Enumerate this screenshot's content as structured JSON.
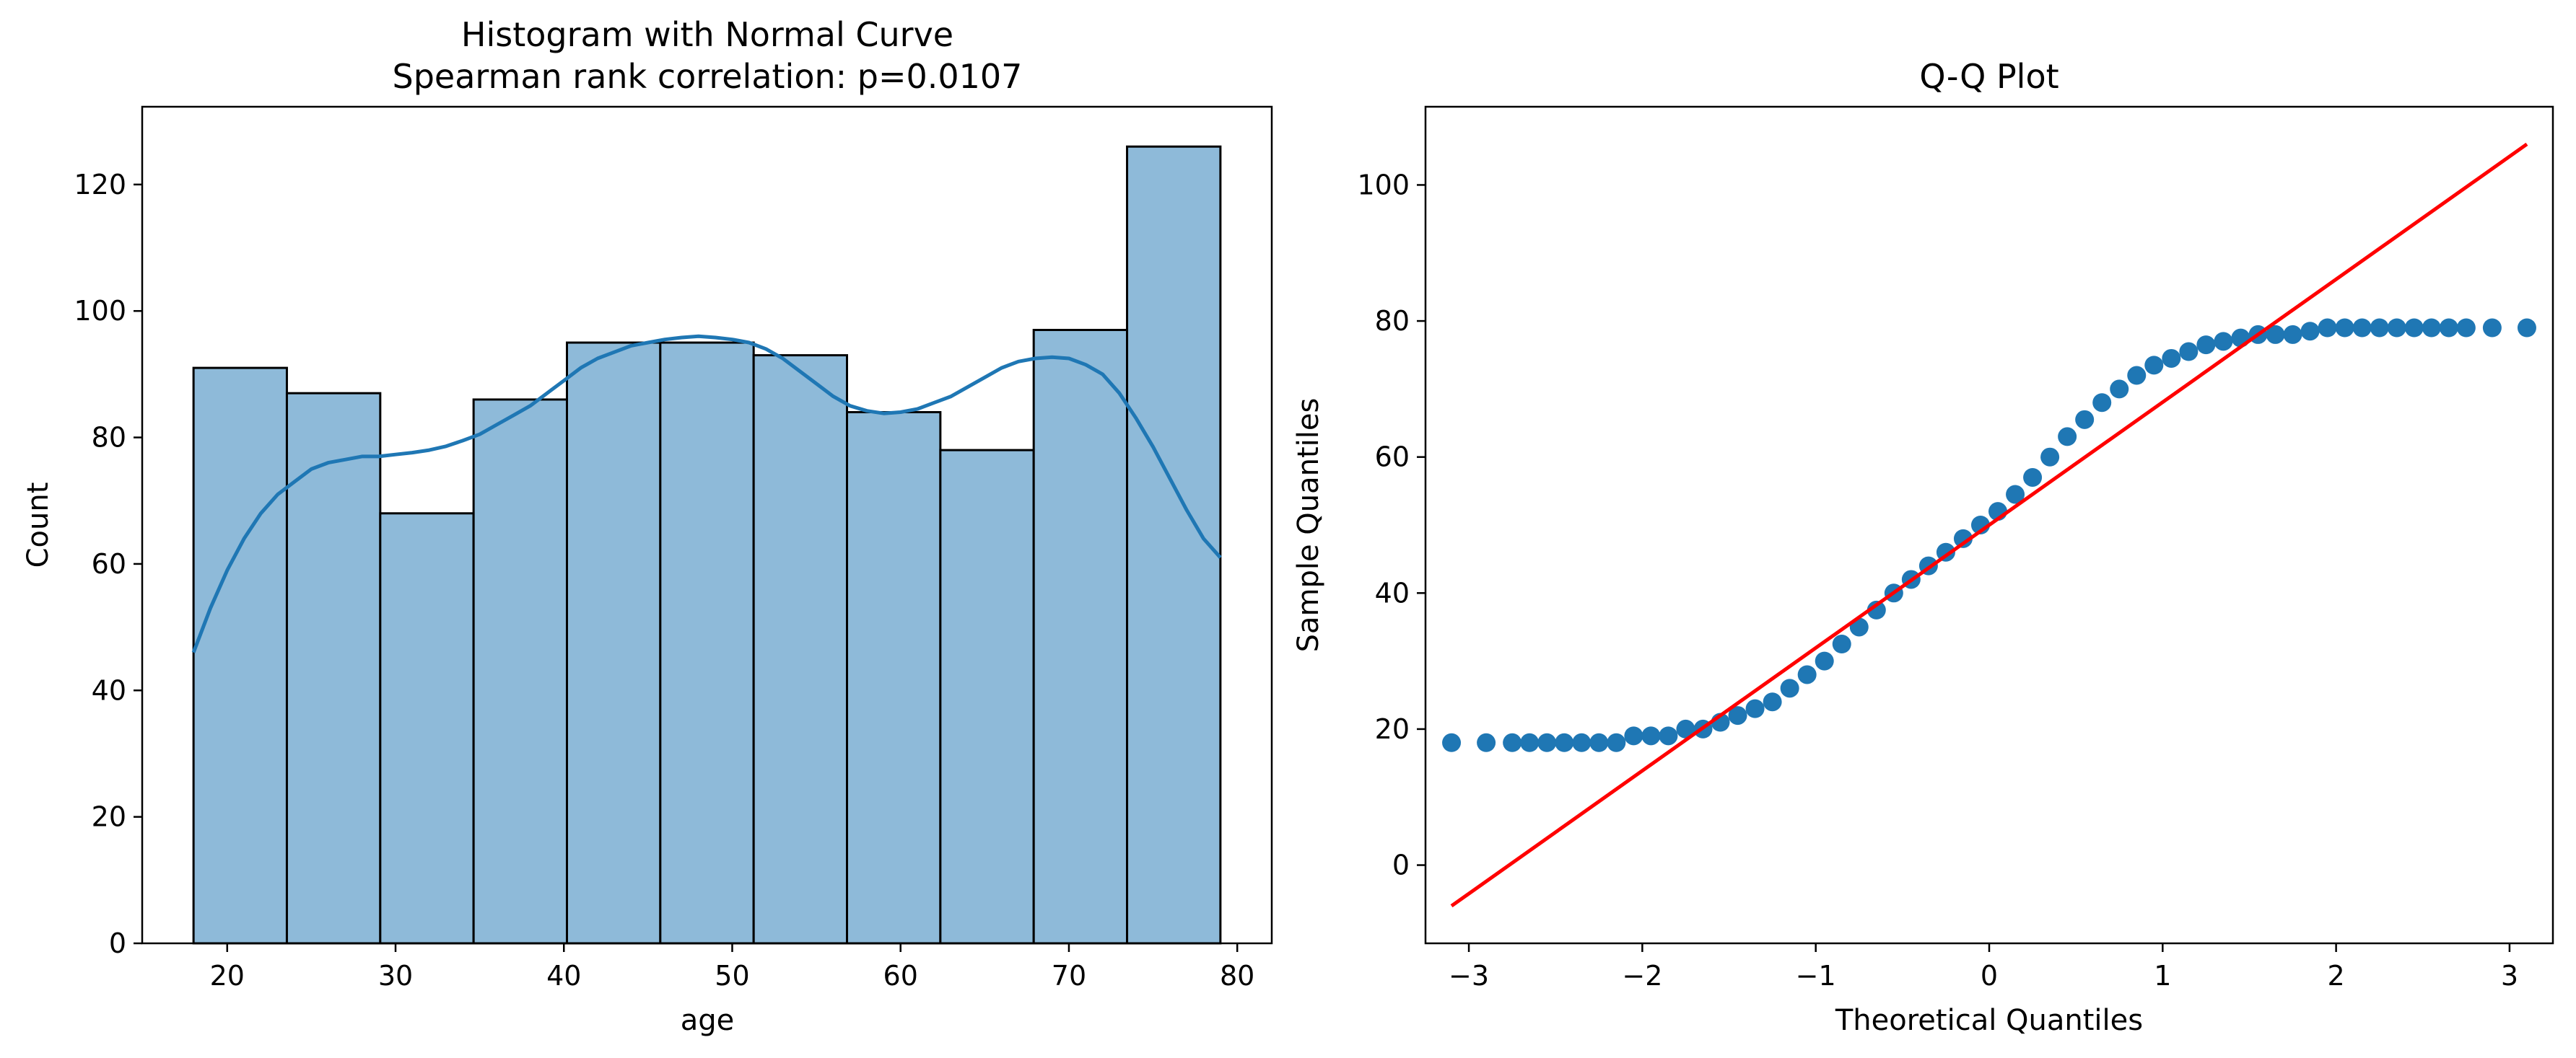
{
  "chart_data": [
    {
      "type": "bar",
      "title": [
        "Histogram with Normal Curve",
        "Spearman rank correlation: p=0.0107"
      ],
      "xlabel": "age",
      "ylabel": "Count",
      "xlim": [
        14.95,
        82.05
      ],
      "ylim": [
        0,
        132.3
      ],
      "xticks": [
        20,
        30,
        40,
        50,
        60,
        70,
        80
      ],
      "yticks": [
        0,
        20,
        40,
        60,
        80,
        100,
        120
      ],
      "bin_edges": [
        18,
        23.545,
        29.091,
        34.636,
        40.182,
        45.727,
        51.273,
        56.818,
        62.364,
        67.909,
        73.455,
        79
      ],
      "values": [
        91,
        87,
        68,
        86,
        95,
        95,
        93,
        84,
        78,
        97,
        126
      ],
      "bar_color": "#8ebad9",
      "edge_color": "#000000",
      "kde_color": "#1f77b4",
      "kde": {
        "x": [
          18,
          19,
          20,
          21,
          22,
          23,
          24,
          25,
          26,
          27,
          28,
          29,
          30,
          31,
          32,
          33,
          34,
          35,
          36,
          37,
          38,
          39,
          40,
          41,
          42,
          43,
          44,
          45,
          46,
          47,
          48,
          49,
          50,
          51,
          52,
          53,
          54,
          55,
          56,
          57,
          58,
          59,
          60,
          61,
          62,
          63,
          64,
          65,
          66,
          67,
          68,
          69,
          70,
          71,
          72,
          73,
          74,
          75,
          76,
          77,
          78,
          79
        ],
        "y": [
          46,
          53,
          59,
          64,
          68,
          71,
          73,
          75,
          76,
          76.5,
          77,
          77,
          77.3,
          77.6,
          78,
          78.6,
          79.5,
          80.5,
          82,
          83.5,
          85,
          87,
          89,
          91,
          92.5,
          93.5,
          94.5,
          95,
          95.5,
          95.8,
          96,
          95.8,
          95.5,
          95,
          94,
          92.5,
          90.5,
          88.5,
          86.5,
          85,
          84.2,
          83.8,
          84,
          84.5,
          85.5,
          86.5,
          88,
          89.5,
          91,
          92,
          92.5,
          92.7,
          92.5,
          91.5,
          90,
          87,
          83,
          78.5,
          73.5,
          68.5,
          64,
          61
        ]
      }
    },
    {
      "type": "scatter",
      "title": "Q-Q Plot",
      "xlabel": "Theoretical Quantiles",
      "ylabel": "Sample Quantiles",
      "xlim": [
        -3.25,
        3.25
      ],
      "ylim": [
        -11.5,
        111.5
      ],
      "xticks": [
        -3,
        -2,
        -1,
        0,
        1,
        2,
        3
      ],
      "yticks": [
        0,
        20,
        40,
        60,
        80,
        100
      ],
      "marker_color": "#1f77b4",
      "line_color": "#ff0000",
      "reference_line": {
        "x": [
          -3.1,
          3.1
        ],
        "y": [
          -6,
          106
        ]
      },
      "points": {
        "x": [
          -3.1,
          -2.9,
          -2.75,
          -2.65,
          -2.55,
          -2.45,
          -2.35,
          -2.25,
          -2.15,
          -2.05,
          -1.95,
          -1.85,
          -1.75,
          -1.65,
          -1.55,
          -1.45,
          -1.35,
          -1.25,
          -1.15,
          -1.05,
          -0.95,
          -0.85,
          -0.75,
          -0.65,
          -0.55,
          -0.45,
          -0.35,
          -0.25,
          -0.15,
          -0.05,
          0.05,
          0.15,
          0.25,
          0.35,
          0.45,
          0.55,
          0.65,
          0.75,
          0.85,
          0.95,
          1.05,
          1.15,
          1.25,
          1.35,
          1.45,
          1.55,
          1.65,
          1.75,
          1.85,
          1.95,
          2.05,
          2.15,
          2.25,
          2.35,
          2.45,
          2.55,
          2.65,
          2.75,
          2.9,
          3.1
        ],
        "y": [
          18,
          18,
          18,
          18,
          18,
          18,
          18,
          18,
          18,
          19,
          19,
          19,
          20,
          20,
          21,
          22,
          23,
          24,
          26,
          28,
          30,
          32.5,
          35,
          37.5,
          40,
          42,
          44,
          46,
          48,
          50,
          52,
          54.5,
          57,
          60,
          63,
          65.5,
          68,
          70,
          72,
          73.5,
          74.5,
          75.5,
          76.5,
          77,
          77.5,
          78,
          78,
          78,
          78.5,
          79,
          79,
          79,
          79,
          79,
          79,
          79,
          79,
          79,
          79,
          79
        ]
      }
    }
  ]
}
